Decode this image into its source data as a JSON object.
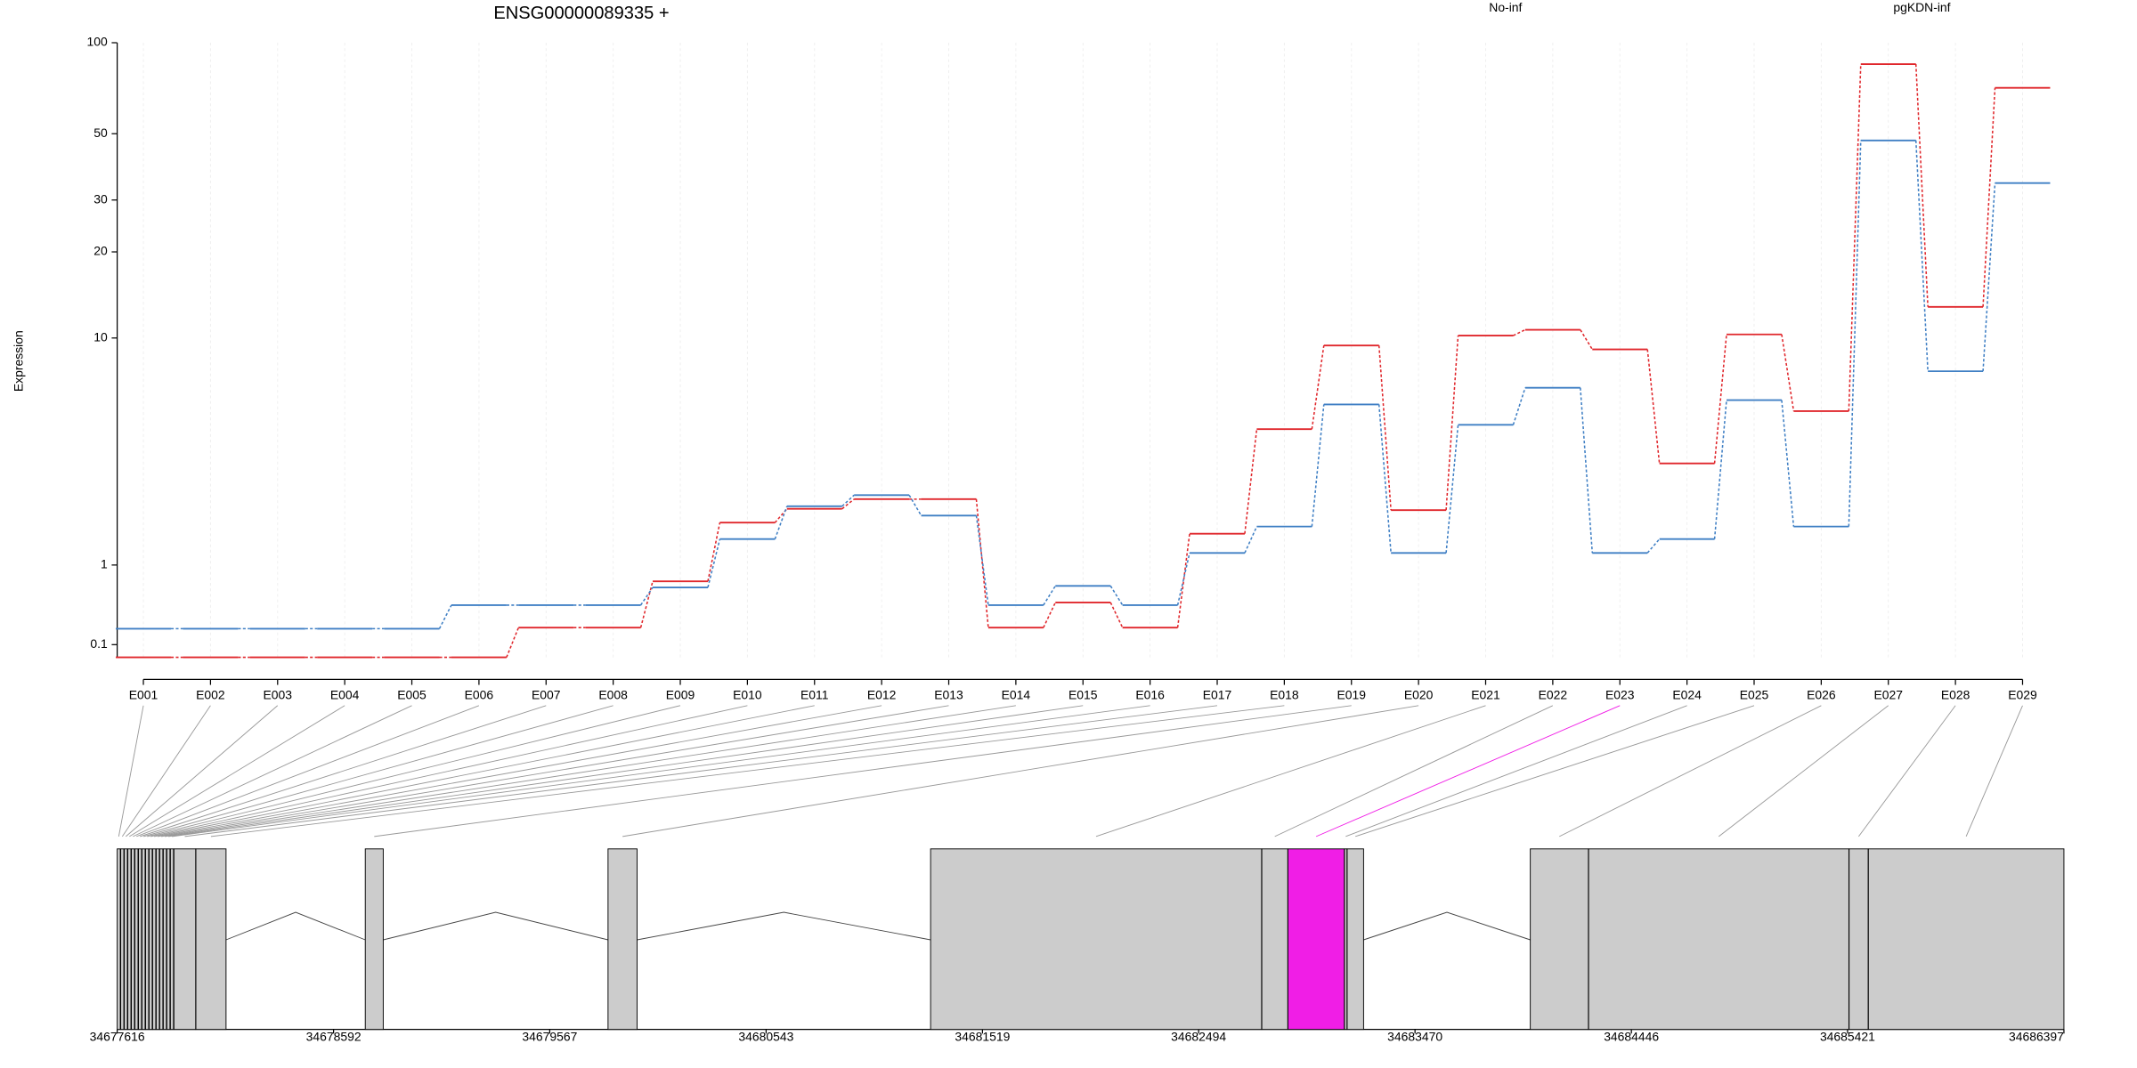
{
  "chart_data": {
    "type": "step",
    "title": "ENSG00000089335 +",
    "y_label": "Expression",
    "ylog": true,
    "grid": true,
    "categories": [
      "E001",
      "E002",
      "E003",
      "E004",
      "E005",
      "E006",
      "E007",
      "E008",
      "E009",
      "E010",
      "E011",
      "E012",
      "E013",
      "E014",
      "E015",
      "E016",
      "E017",
      "E018",
      "E019",
      "E020",
      "E021",
      "E022",
      "E023",
      "E024",
      "E025",
      "E026",
      "E027",
      "E028",
      "E029"
    ],
    "series": [
      {
        "name": "No-inf",
        "color": "#e0262b",
        "values": [
          0,
          0,
          0,
          0,
          0,
          0,
          0.25,
          0.25,
          0.77,
          1.75,
          2.05,
          2.28,
          2.28,
          0.25,
          0.51,
          0.25,
          1.53,
          4.55,
          9.4,
          2.02,
          10.2,
          10.7,
          9.1,
          3.29,
          10.3,
          5.35,
          85,
          12.9,
          71
        ]
      },
      {
        "name": "pgKDN-inf",
        "color": "#3f7fc4",
        "values": [
          0.24,
          0.24,
          0.24,
          0.24,
          0.24,
          0.48,
          0.48,
          0.48,
          0.69,
          1.43,
          2.11,
          2.38,
          1.9,
          0.48,
          0.71,
          0.48,
          1.19,
          1.67,
          5.68,
          1.19,
          4.73,
          6.57,
          1.19,
          1.43,
          5.9,
          1.67,
          47.5,
          7.57,
          34.2
        ]
      }
    ],
    "ylim": [
      0,
      100
    ],
    "yticks": [
      0.1,
      1,
      10,
      20,
      30,
      50,
      100
    ],
    "highlight": 22,
    "highlight_color": "#f01ee6",
    "exons": [
      [
        34677616,
        34677630
      ],
      [
        34677632,
        34677646
      ],
      [
        34677648,
        34677662
      ],
      [
        34677664,
        34677678
      ],
      [
        34677680,
        34677694
      ],
      [
        34677696,
        34677710
      ],
      [
        34677712,
        34677726
      ],
      [
        34677728,
        34677742
      ],
      [
        34677744,
        34677758
      ],
      [
        34677760,
        34677774
      ],
      [
        34677776,
        34677790
      ],
      [
        34677792,
        34677806
      ],
      [
        34677808,
        34677822
      ],
      [
        34677824,
        34677838
      ],
      [
        34677840,
        34677854
      ],
      [
        34677856,
        34677870
      ],
      [
        34677872,
        34677970
      ],
      [
        34677971,
        34678107
      ],
      [
        34678735,
        34678816
      ],
      [
        34679830,
        34679961
      ],
      [
        34681285,
        34682778
      ],
      [
        34682779,
        34682896
      ],
      [
        34682897,
        34683151
      ],
      [
        34683152,
        34683163
      ],
      [
        34683164,
        34683238
      ],
      [
        34683990,
        34684252
      ],
      [
        34684253,
        34685427
      ],
      [
        34685428,
        34685514
      ],
      [
        34685515,
        34686397
      ]
    ],
    "glim": [
      34677616,
      34686397
    ],
    "gticks": [
      34677616,
      34678592,
      34679567,
      34680543,
      34681519,
      34682494,
      34683470,
      34684446,
      34685421,
      34686397
    ]
  }
}
